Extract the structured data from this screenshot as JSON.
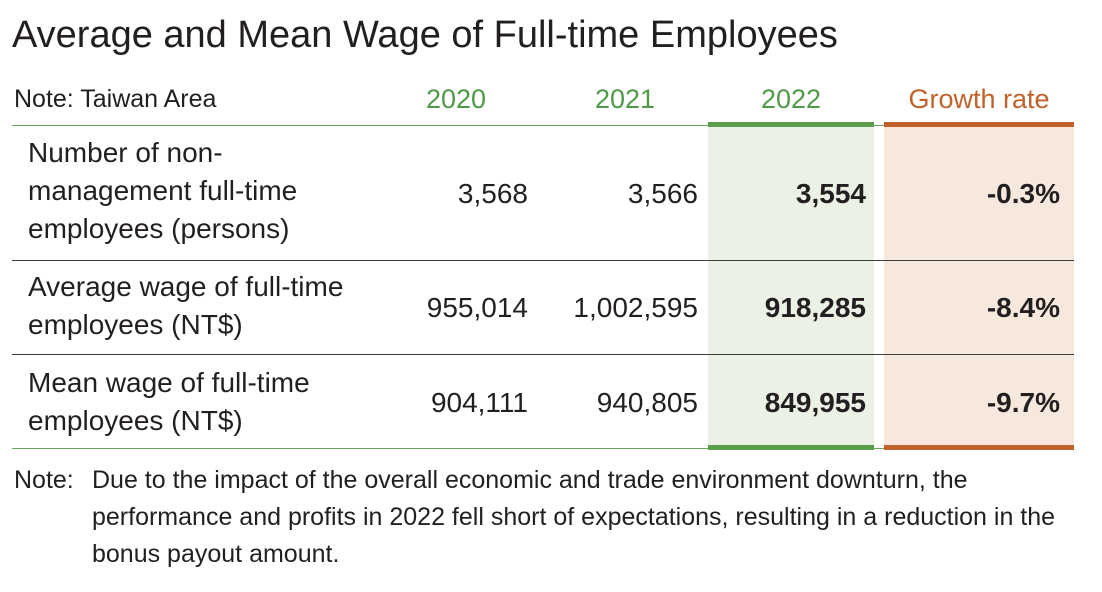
{
  "title": "Average and Mean Wage of Full-time Employees",
  "header": {
    "note": "Note: Taiwan Area",
    "col_2020": "2020",
    "col_2021": "2021",
    "col_2022": "2022",
    "col_growth": "Growth rate"
  },
  "rows": [
    {
      "label": "Number of non-management full-time employees (persons)",
      "v2020": "3,568",
      "v2021": "3,566",
      "v2022": "3,554",
      "growth": "-0.3%"
    },
    {
      "label": "Average wage of full-time employees (NT$)",
      "v2020": "955,014",
      "v2021": "1,002,595",
      "v2022": "918,285",
      "growth": "-8.4%"
    },
    {
      "label": "Mean wage of full-time employees (NT$)",
      "v2020": "904,111",
      "v2021": "940,805",
      "v2022": "849,955",
      "growth": "-9.7%"
    }
  ],
  "footnote": {
    "prefix": "Note:",
    "text": "Due to the impact of the overall economic and trade environment downturn, the performance and profits in 2022 fell short of expectations, resulting in a reduction in the bonus payout amount."
  },
  "colors": {
    "year_header": "#4f9a47",
    "growth_header": "#c0622a",
    "highlight_2022_bg": "#ebf1e5",
    "highlight_growth_bg": "#f7e8dd"
  }
}
